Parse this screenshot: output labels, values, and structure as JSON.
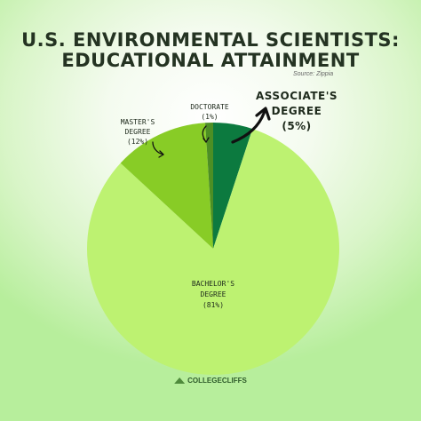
{
  "title_line1": "U.S. ENVIRONMENTAL SCIENTISTS:",
  "title_line2": "EDUCATIONAL ATTAINMENT",
  "source": "Source: Zippia",
  "logo_text": "COLLEGECLIFFS",
  "logo_icon": "mountain-icon",
  "chart_data": {
    "type": "pie",
    "start_angle_deg": 0,
    "direction": "clockwise",
    "slices": [
      {
        "label_lines": [
          "ASSOCIATE'S",
          "DEGREE",
          "(5%)"
        ],
        "value": 5,
        "color": "#0c7a3f"
      },
      {
        "label_lines": [
          "BACHELOR'S",
          "DEGREE",
          "(81%)"
        ],
        "value": 81,
        "color": "#bdf271"
      },
      {
        "label_lines": [
          "MASTER'S",
          "DEGREE",
          "(12%)"
        ],
        "value": 12,
        "color": "#88cc26"
      },
      {
        "label_lines": [
          "DOCTORATE",
          "(1%)"
        ],
        "value": 1,
        "color": "#4d8f24"
      }
    ]
  }
}
